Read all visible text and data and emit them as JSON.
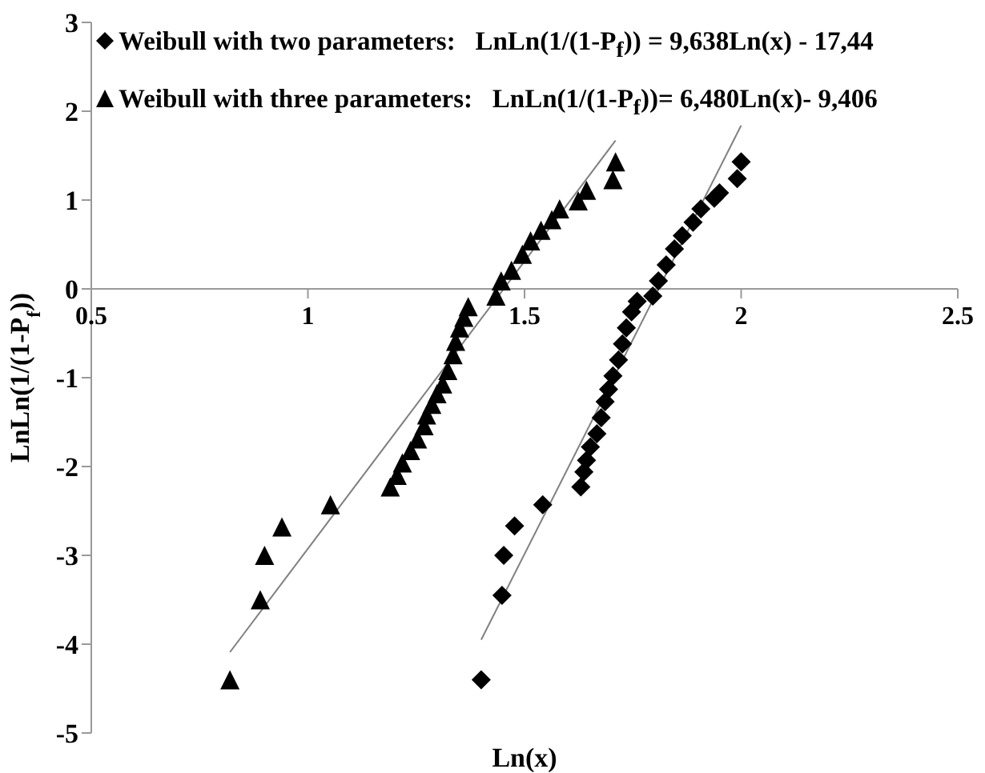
{
  "chart_data": {
    "type": "scatter",
    "xlabel": "Ln(x)",
    "ylabel": "LnLn(1/(1-P$_{f}$))",
    "xlim": [
      0.5,
      2.5
    ],
    "ylim": [
      -5,
      3
    ],
    "xticks": [
      0.5,
      1,
      1.5,
      2,
      2.5
    ],
    "yticks": [
      -5,
      -4,
      -3,
      -2,
      -1,
      0,
      1,
      2,
      3
    ],
    "grid": false,
    "legend": "top left",
    "series": [
      {
        "name": "Weibull with two parameters:   LnLn(1/(1-P$_{f}$)) = 9,638Ln(x) - 17,44",
        "type": "scatter",
        "marker": "diamond",
        "color": "#000000",
        "x": [
          1.4,
          1.448,
          1.452,
          1.477,
          1.542,
          1.63,
          1.637,
          1.643,
          1.652,
          1.667,
          1.677,
          1.686,
          1.694,
          1.704,
          1.717,
          1.726,
          1.735,
          1.747,
          1.76,
          1.796,
          1.809,
          1.827,
          1.846,
          1.864,
          1.889,
          1.907,
          1.938,
          1.95,
          1.991,
          2.0
        ],
        "values": [
          -4.4,
          -3.45,
          -3.0,
          -2.67,
          -2.43,
          -2.23,
          -2.06,
          -1.93,
          -1.78,
          -1.63,
          -1.45,
          -1.27,
          -1.13,
          -0.98,
          -0.8,
          -0.62,
          -0.44,
          -0.26,
          -0.14,
          -0.08,
          0.09,
          0.27,
          0.45,
          0.6,
          0.75,
          0.9,
          1.02,
          1.08,
          1.24,
          1.43
        ]
      },
      {
        "name": "Weibull with three parameters:   LnLn(1/(1-P$_{f}$))= 6,480Ln(x)- 9,406",
        "type": "scatter",
        "marker": "triangle",
        "color": "#000000",
        "x": [
          0.82,
          0.89,
          0.9,
          0.94,
          1.052,
          1.19,
          1.206,
          1.218,
          1.237,
          1.253,
          1.268,
          1.274,
          1.286,
          1.298,
          1.311,
          1.323,
          1.335,
          1.341,
          1.35,
          1.36,
          1.37,
          1.434,
          1.446,
          1.47,
          1.495,
          1.514,
          1.538,
          1.563,
          1.581,
          1.624,
          1.643,
          1.704,
          1.71
        ],
        "values": [
          -4.4,
          -3.5,
          -3.0,
          -2.68,
          -2.43,
          -2.23,
          -2.1,
          -1.96,
          -1.82,
          -1.69,
          -1.54,
          -1.42,
          -1.3,
          -1.18,
          -1.07,
          -0.92,
          -0.74,
          -0.59,
          -0.44,
          -0.32,
          -0.2,
          -0.08,
          0.09,
          0.21,
          0.39,
          0.54,
          0.66,
          0.78,
          0.9,
          0.99,
          1.11,
          1.23,
          1.43
        ]
      },
      {
        "type": "line",
        "color": "#808080",
        "x": [
          1.4,
          2.0
        ],
        "values": [
          -3.95,
          1.84
        ]
      },
      {
        "type": "line",
        "color": "#808080",
        "x": [
          0.82,
          1.71
        ],
        "values": [
          -4.09,
          1.67
        ]
      }
    ]
  }
}
